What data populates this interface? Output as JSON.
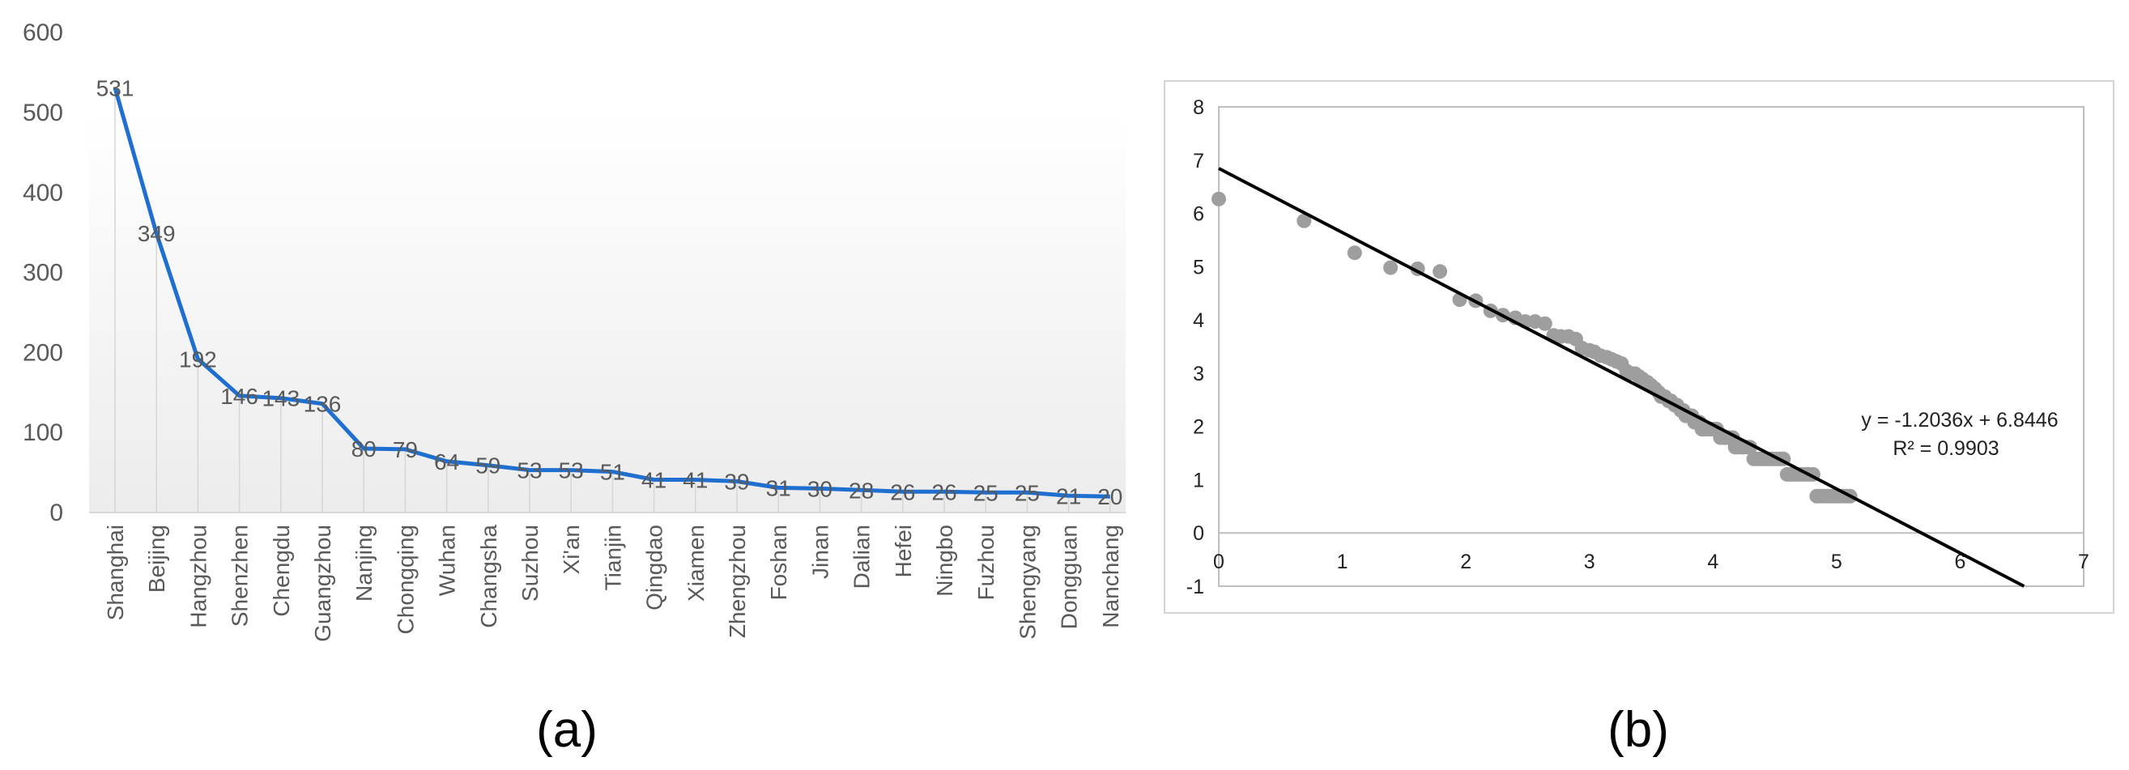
{
  "panels": {
    "a_label": "(a)",
    "b_label": "(b)"
  },
  "chart_data": [
    {
      "type": "line",
      "title": "",
      "xlabel": "",
      "ylabel": "",
      "ylim": [
        0,
        600
      ],
      "yticks": [
        0,
        100,
        200,
        300,
        400,
        500,
        600
      ],
      "grid": "vertical drop lines at each category",
      "background": "light gray gradient under line",
      "color": "#1f6fd1",
      "categories": [
        "Shanghai",
        "Beijing",
        "Hangzhou",
        "Shenzhen",
        "Chengdu",
        "Guangzhou",
        "Nanjing",
        "Chongqing",
        "Wuhan",
        "Changsha",
        "Suzhou",
        "Xi'an",
        "Tianjin",
        "Qingdao",
        "Xiamen",
        "Zhengzhou",
        "Foshan",
        "Jinan",
        "Dalian",
        "Hefei",
        "Ningbo",
        "Fuzhou",
        "Shengyang",
        "Dongguan",
        "Nanchang"
      ],
      "values": [
        531,
        349,
        192,
        146,
        143,
        136,
        80,
        79,
        64,
        59,
        53,
        53,
        51,
        41,
        41,
        39,
        31,
        30,
        28,
        26,
        26,
        25,
        25,
        21,
        20
      ],
      "data_labels": [
        "531",
        "349",
        "192",
        "146",
        "143",
        "136",
        "80",
        "79",
        "64",
        "59",
        "53",
        "53",
        "51",
        "41",
        "41",
        "39",
        "31",
        "30",
        "28",
        "26",
        "26",
        "25",
        "25",
        "21",
        "20"
      ]
    },
    {
      "type": "scatter",
      "title": "",
      "xlabel": "",
      "ylabel": "",
      "xlim": [
        0,
        7
      ],
      "ylim": [
        -1,
        8
      ],
      "xticks": [
        0,
        1,
        2,
        3,
        4,
        5,
        6,
        7
      ],
      "yticks": [
        -1,
        0,
        1,
        2,
        3,
        4,
        5,
        6,
        7,
        8
      ],
      "grid": "off",
      "point_color": "#9e9e9e",
      "trendline": {
        "slope": -1.2036,
        "intercept": 6.8446,
        "color": "#000000"
      },
      "annotation": {
        "equation": "y = -1.2036x + 6.8446",
        "r2": "R² = 0.9903"
      },
      "points": [
        [
          0.0,
          6.27
        ],
        [
          0.69,
          5.86
        ],
        [
          1.1,
          5.26
        ],
        [
          1.39,
          4.98
        ],
        [
          1.61,
          4.96
        ],
        [
          1.79,
          4.91
        ],
        [
          1.95,
          4.38
        ],
        [
          2.08,
          4.36
        ],
        [
          2.2,
          4.17
        ],
        [
          2.3,
          4.09
        ],
        [
          2.4,
          4.04
        ],
        [
          2.48,
          3.97
        ],
        [
          2.56,
          3.97
        ],
        [
          2.64,
          3.93
        ],
        [
          2.71,
          3.71
        ],
        [
          2.77,
          3.69
        ],
        [
          2.83,
          3.69
        ],
        [
          2.89,
          3.64
        ],
        [
          2.94,
          3.47
        ],
        [
          3.0,
          3.43
        ],
        [
          3.04,
          3.4
        ],
        [
          3.09,
          3.33
        ],
        [
          3.14,
          3.3
        ],
        [
          3.18,
          3.26
        ],
        [
          3.22,
          3.22
        ],
        [
          3.26,
          3.18
        ],
        [
          3.3,
          3.04
        ],
        [
          3.33,
          3.0
        ],
        [
          3.37,
          2.99
        ],
        [
          3.4,
          2.94
        ],
        [
          3.43,
          2.89
        ],
        [
          3.47,
          2.83
        ],
        [
          3.5,
          2.77
        ],
        [
          3.53,
          2.71
        ],
        [
          3.56,
          2.64
        ],
        [
          3.58,
          2.56
        ],
        [
          3.61,
          2.56
        ],
        [
          3.64,
          2.48
        ],
        [
          3.66,
          2.48
        ],
        [
          3.69,
          2.4
        ],
        [
          3.71,
          2.4
        ],
        [
          3.74,
          2.3
        ],
        [
          3.76,
          2.3
        ],
        [
          3.78,
          2.2
        ],
        [
          3.81,
          2.2
        ],
        [
          3.83,
          2.2
        ],
        [
          3.85,
          2.08
        ],
        [
          3.87,
          2.08
        ],
        [
          3.89,
          2.08
        ],
        [
          3.91,
          1.95
        ],
        [
          3.93,
          1.95
        ],
        [
          3.95,
          1.95
        ],
        [
          3.97,
          1.95
        ],
        [
          3.99,
          1.95
        ],
        [
          4.01,
          1.95
        ],
        [
          4.03,
          1.95
        ],
        [
          4.06,
          1.79
        ],
        [
          4.09,
          1.79
        ],
        [
          4.11,
          1.79
        ],
        [
          4.13,
          1.79
        ],
        [
          4.16,
          1.79
        ],
        [
          4.18,
          1.61
        ],
        [
          4.2,
          1.61
        ],
        [
          4.23,
          1.61
        ],
        [
          4.25,
          1.61
        ],
        [
          4.28,
          1.61
        ],
        [
          4.3,
          1.61
        ],
        [
          4.33,
          1.39
        ],
        [
          4.36,
          1.39
        ],
        [
          4.39,
          1.39
        ],
        [
          4.42,
          1.39
        ],
        [
          4.45,
          1.39
        ],
        [
          4.48,
          1.39
        ],
        [
          4.51,
          1.39
        ],
        [
          4.54,
          1.39
        ],
        [
          4.57,
          1.39
        ],
        [
          4.6,
          1.1
        ],
        [
          4.63,
          1.1
        ],
        [
          4.66,
          1.1
        ],
        [
          4.69,
          1.1
        ],
        [
          4.72,
          1.1
        ],
        [
          4.75,
          1.1
        ],
        [
          4.78,
          1.1
        ],
        [
          4.81,
          1.1
        ],
        [
          4.84,
          0.69
        ],
        [
          4.87,
          0.69
        ],
        [
          4.9,
          0.69
        ],
        [
          4.93,
          0.69
        ],
        [
          4.96,
          0.69
        ],
        [
          4.99,
          0.69
        ],
        [
          5.02,
          0.69
        ],
        [
          5.05,
          0.69
        ],
        [
          5.08,
          0.69
        ],
        [
          5.11,
          0.69
        ]
      ]
    }
  ]
}
